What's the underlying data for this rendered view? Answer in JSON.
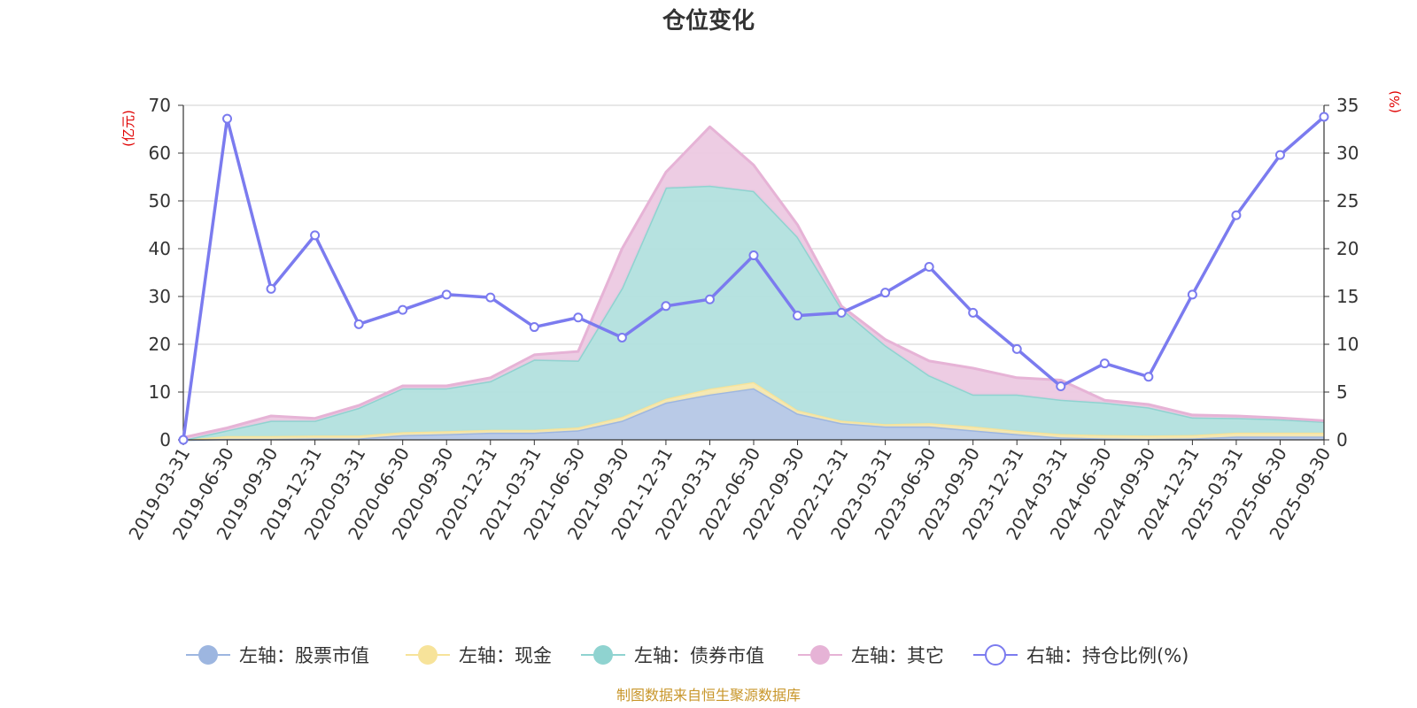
{
  "chart_data": {
    "type": "area",
    "title": "仓位变化",
    "source": "制图数据来自恒生聚源数据库",
    "left_axis": {
      "unit": "(亿元)",
      "range": [
        0,
        70
      ],
      "ticks": [
        "0",
        "10",
        "20",
        "30",
        "40",
        "50",
        "60",
        "70"
      ]
    },
    "right_axis": {
      "unit": "(%)",
      "range": [
        0,
        35
      ],
      "ticks": [
        "0",
        "5",
        "10",
        "15",
        "20",
        "25",
        "30",
        "35"
      ]
    },
    "x": [
      "2019-03-31",
      "2019-06-30",
      "2019-09-30",
      "2019-12-31",
      "2020-03-31",
      "2020-06-30",
      "2020-09-30",
      "2020-12-31",
      "2021-03-31",
      "2021-06-30",
      "2021-09-30",
      "2021-12-31",
      "2022-03-31",
      "2022-06-30",
      "2022-09-30",
      "2022-12-31",
      "2023-03-31",
      "2023-06-30",
      "2023-09-30",
      "2023-12-31",
      "2024-03-31",
      "2024-06-30",
      "2024-09-30",
      "2024-12-31",
      "2025-03-31",
      "2025-06-30",
      "2025-09-30"
    ],
    "series": [
      {
        "name": "左轴：股票市值",
        "axis": "left",
        "stack": true,
        "color": "#9db6e0",
        "fill": "#b5c7e6",
        "values": [
          0,
          0.2,
          0.2,
          0.3,
          0.3,
          1.0,
          1.2,
          1.5,
          1.5,
          2.0,
          4.0,
          7.8,
          9.5,
          10.8,
          5.5,
          3.5,
          2.8,
          2.8,
          2.0,
          1.2,
          0.5,
          0.3,
          0.2,
          0.3,
          0.7,
          0.7,
          0.7
        ]
      },
      {
        "name": "左轴：现金",
        "axis": "left",
        "stack": true,
        "color": "#f7e39a",
        "fill": "#f5e8b0",
        "values": [
          0,
          0.6,
          0.6,
          0.6,
          0.6,
          0.6,
          0.6,
          0.6,
          0.6,
          0.6,
          0.8,
          0.8,
          1.2,
          1.3,
          0.7,
          0.5,
          0.5,
          0.7,
          0.8,
          0.7,
          0.7,
          0.7,
          0.7,
          0.7,
          0.8,
          0.8,
          0.8
        ]
      },
      {
        "name": "左轴：债券市值",
        "axis": "left",
        "stack": true,
        "color": "#8fd3d0",
        "fill": "#b2e0de",
        "values": [
          0,
          1.2,
          3.2,
          3.1,
          5.8,
          9.2,
          9.0,
          10.2,
          14.7,
          14.0,
          27.0,
          44.2,
          42.5,
          40.0,
          36.3,
          23.5,
          16.5,
          10.0,
          6.7,
          7.6,
          7.2,
          6.8,
          5.9,
          3.7,
          3.1,
          2.8,
          2.3
        ]
      },
      {
        "name": "左轴：其它",
        "axis": "left",
        "stack": true,
        "color": "#e6b3d6",
        "fill": "#ecc9e1",
        "values": [
          0.5,
          0.5,
          1.0,
          0.5,
          0.5,
          0.5,
          0.5,
          0.7,
          1.0,
          1.9,
          8.2,
          3.2,
          12.3,
          5.4,
          2.5,
          0.5,
          1.2,
          3.0,
          5.5,
          3.5,
          4.1,
          0.5,
          0.6,
          0.5,
          0.4,
          0.3,
          0.2
        ]
      },
      {
        "name": "右轴：持仓比例(%)",
        "axis": "right",
        "type": "line",
        "color": "#7b7bef",
        "values": [
          0,
          33.6,
          15.8,
          21.4,
          12.1,
          13.6,
          15.2,
          14.9,
          11.8,
          12.8,
          10.7,
          14.0,
          14.7,
          19.3,
          13.0,
          13.3,
          15.4,
          18.1,
          13.3,
          9.5,
          5.6,
          8.0,
          6.6,
          15.2,
          23.5,
          29.8,
          33.8
        ]
      }
    ]
  }
}
